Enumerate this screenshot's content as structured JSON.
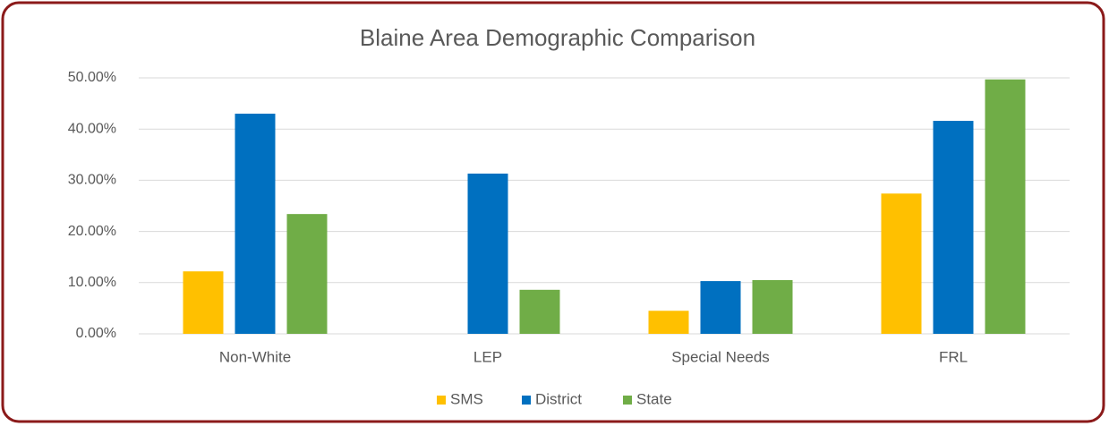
{
  "chart_data": {
    "type": "bar",
    "title": "Blaine Area Demographic Comparison",
    "categories": [
      "Non-White",
      "LEP",
      "Special Needs",
      "FRL"
    ],
    "series": [
      {
        "name": "SMS",
        "color": "#ffc000",
        "values": [
          12.2,
          0,
          4.5,
          27.4
        ]
      },
      {
        "name": "District",
        "color": "#0070c0",
        "values": [
          43.0,
          31.3,
          10.3,
          41.6
        ]
      },
      {
        "name": "State",
        "color": "#70ad47",
        "values": [
          23.4,
          8.6,
          10.5,
          49.7
        ]
      }
    ],
    "ylim": [
      0,
      50
    ],
    "yticks": [
      {
        "value": 0,
        "label": "0.00%"
      },
      {
        "value": 10,
        "label": "10.00%"
      },
      {
        "value": 20,
        "label": "20.00%"
      },
      {
        "value": 30,
        "label": "30.00%"
      },
      {
        "value": 40,
        "label": "40.00%"
      },
      {
        "value": 50,
        "label": "50.00%"
      }
    ],
    "grid": true,
    "legend": "bottom"
  }
}
